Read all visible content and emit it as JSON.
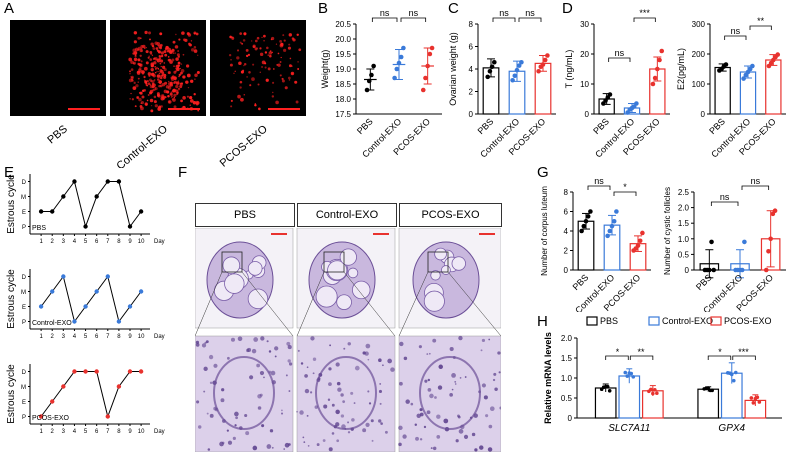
{
  "panel_labels": {
    "A": "A",
    "B": "B",
    "C": "C",
    "D": "D",
    "E": "E",
    "F": "F",
    "G": "G",
    "H": "H"
  },
  "groups": [
    "PBS",
    "Control-EXO",
    "PCOS-EXO"
  ],
  "colors": {
    "PBS": "#000000",
    "Control-EXO": "#3a7ad9",
    "PCOS-EXO": "#e8322e",
    "fluor": "#ff2020",
    "histo": "#b9a3d1"
  },
  "sig": {
    "ns": "ns",
    "star1": "*",
    "star2": "**",
    "star3": "***"
  },
  "panelA": {
    "labels": [
      "PBS",
      "Control-EXO",
      "PCOS-EXO"
    ]
  },
  "panelF": {
    "headers": [
      "PBS",
      "Control-EXO",
      "PCOS-EXO"
    ]
  },
  "chart_data": [
    {
      "id": "B",
      "type": "scatter",
      "ylabel": "Weight(g)",
      "ylim": [
        17.5,
        20.5
      ],
      "yticks": [
        "17.5",
        "18.0",
        "18.5",
        "19.0",
        "19.5",
        "20.0",
        "20.5"
      ],
      "categories": [
        "PBS",
        "Control-EXO",
        "PCOS-EXO"
      ],
      "means": [
        18.65,
        19.15,
        19.1
      ],
      "sd": [
        0.35,
        0.5,
        0.6
      ],
      "points": [
        [
          18.3,
          18.6,
          18.8,
          19.1
        ],
        [
          18.7,
          19.0,
          19.2,
          19.4,
          19.7
        ],
        [
          18.3,
          18.7,
          19.1,
          19.5,
          19.7
        ]
      ],
      "annotations": [
        {
          "from": 0,
          "to": 1,
          "text": "ns"
        },
        {
          "from": 1,
          "to": 2,
          "text": "ns"
        }
      ]
    },
    {
      "id": "C",
      "type": "bar",
      "ylabel": "Ovarian weight  (g)",
      "ylim": [
        0,
        8
      ],
      "yticks": [
        "0",
        "2",
        "4",
        "6",
        "8"
      ],
      "categories": [
        "PBS",
        "Control-EXO",
        "PCOS-EXO"
      ],
      "means": [
        4.1,
        3.8,
        4.5
      ],
      "sd": [
        0.8,
        0.9,
        0.7
      ],
      "points": [
        [
          3.3,
          3.8,
          4.2,
          4.6
        ],
        [
          3.0,
          3.4,
          3.9,
          4.3,
          4.6
        ],
        [
          3.8,
          4.2,
          4.4,
          4.8,
          5.2
        ]
      ],
      "annotations": [
        {
          "from": 0,
          "to": 1,
          "text": "ns"
        },
        {
          "from": 1,
          "to": 2,
          "text": "ns"
        }
      ]
    },
    {
      "id": "D1",
      "type": "bar",
      "ylabel": "T (ng/mL)",
      "ylim": [
        0,
        30
      ],
      "yticks": [
        "0",
        "10",
        "20",
        "30"
      ],
      "categories": [
        "PBS",
        "Control-EXO",
        "PCOS-EXO"
      ],
      "means": [
        5.0,
        2.0,
        15.0
      ],
      "sd": [
        1.8,
        1.5,
        4.0
      ],
      "points": [
        [
          3.5,
          4.5,
          5.5,
          6.5
        ],
        [
          0.5,
          1.5,
          2.0,
          2.5,
          3.5
        ],
        [
          10,
          12,
          15,
          18,
          21
        ]
      ],
      "annotations": [
        {
          "from": 0,
          "to": 1,
          "text": "ns"
        },
        {
          "from": 1,
          "to": 2,
          "text": "***"
        }
      ]
    },
    {
      "id": "D2",
      "type": "bar",
      "ylabel": "E2(pg/mL)",
      "ylim": [
        0,
        300
      ],
      "yticks": [
        "0",
        "100",
        "200",
        "300"
      ],
      "categories": [
        "PBS",
        "Control-EXO",
        "PCOS-EXO"
      ],
      "means": [
        155,
        140,
        180
      ],
      "sd": [
        12,
        20,
        18
      ],
      "points": [
        [
          145,
          150,
          158,
          165
        ],
        [
          118,
          130,
          140,
          150,
          160
        ],
        [
          160,
          170,
          180,
          190,
          198
        ]
      ],
      "annotations": [
        {
          "from": 0,
          "to": 1,
          "text": "ns"
        },
        {
          "from": 1,
          "to": 2,
          "text": "**"
        }
      ]
    },
    {
      "id": "E",
      "type": "line",
      "ylabel": "Estrous cycle",
      "xlabel": "Day",
      "yticks": [
        "P",
        "E",
        "M",
        "D"
      ],
      "x": [
        1,
        2,
        3,
        4,
        5,
        6,
        7,
        8,
        9,
        10
      ],
      "series": [
        {
          "name": "PBS",
          "values": [
            2,
            2,
            3,
            4,
            1,
            3,
            4,
            4,
            1,
            2
          ]
        },
        {
          "name": "Control-EXO",
          "values": [
            2,
            3,
            4,
            1,
            2,
            3,
            4,
            1,
            2,
            3
          ]
        },
        {
          "name": "PCOS-EXO",
          "values": [
            1,
            2,
            3,
            4,
            4,
            4,
            1,
            3,
            4,
            4
          ]
        }
      ]
    },
    {
      "id": "G1",
      "type": "bar",
      "ylabel": "Number of corpus luteum",
      "ylim": [
        0,
        8
      ],
      "yticks": [
        "0",
        "2",
        "4",
        "6",
        "8"
      ],
      "categories": [
        "PBS",
        "Control-EXO",
        "PCOS-EXO"
      ],
      "means": [
        5.0,
        4.6,
        2.7
      ],
      "sd": [
        0.8,
        1.0,
        0.8
      ],
      "points": [
        [
          4,
          4.5,
          5,
          5.5,
          6
        ],
        [
          3.5,
          4,
          4.5,
          5,
          6
        ],
        [
          2,
          2.2,
          2.5,
          3,
          3.8
        ]
      ],
      "annotations": [
        {
          "from": 0,
          "to": 1,
          "text": "ns"
        },
        {
          "from": 1,
          "to": 2,
          "text": "*"
        }
      ]
    },
    {
      "id": "G2",
      "type": "bar",
      "ylabel": "Number of cystic follicles",
      "ylim": [
        0,
        2.5
      ],
      "yticks": [
        "0",
        "0.5",
        "1.0",
        "1.5",
        "2.0",
        "2.5"
      ],
      "categories": [
        "PBS",
        "Control-EXO",
        "PCOS-EXO"
      ],
      "means": [
        0.2,
        0.2,
        1.0
      ],
      "sd": [
        0.45,
        0.45,
        0.9
      ],
      "points": [
        [
          0,
          0,
          0,
          0.9,
          0
        ],
        [
          0,
          0,
          0,
          0,
          0.9
        ],
        [
          0,
          0.6,
          1,
          1.8,
          1.9
        ]
      ],
      "annotations": [
        {
          "from": 0,
          "to": 1,
          "text": "ns"
        },
        {
          "from": 1,
          "to": 2,
          "text": "ns"
        }
      ]
    },
    {
      "id": "H",
      "type": "bar",
      "ylabel": "Relative mRNA levels",
      "ylim": [
        0,
        2.0
      ],
      "yticks": [
        "0",
        "0.5",
        "1.0",
        "1.5",
        "2.0"
      ],
      "categories": [
        "SLC7A11",
        "GPX4"
      ],
      "series": [
        {
          "name": "PBS",
          "values": [
            0.75,
            0.72
          ],
          "sd": [
            0.1,
            0.06
          ]
        },
        {
          "name": "Control-EXO",
          "values": [
            1.05,
            1.12
          ],
          "sd": [
            0.18,
            0.26
          ]
        },
        {
          "name": "PCOS-EXO",
          "values": [
            0.68,
            0.44
          ],
          "sd": [
            0.13,
            0.14
          ]
        }
      ],
      "annotations": [
        {
          "group": 0,
          "text": "*"
        },
        {
          "group": 0,
          "text": "**"
        },
        {
          "group": 1,
          "text": "*"
        },
        {
          "group": 1,
          "text": "***"
        }
      ]
    }
  ]
}
